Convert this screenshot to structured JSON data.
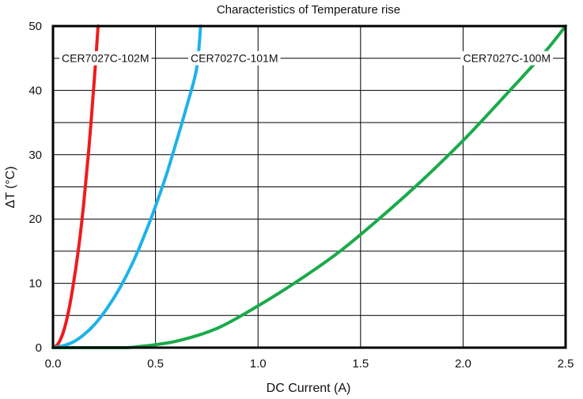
{
  "chart_data": {
    "type": "line",
    "title": "Characteristics of Temperature rise",
    "xlabel": "DC Current (A)",
    "ylabel": "ΔT (°C)",
    "xlim": [
      0,
      2.5
    ],
    "ylim": [
      0,
      50
    ],
    "x_ticks": [
      0.0,
      0.5,
      1.0,
      1.5,
      2.0,
      2.5
    ],
    "x_tick_labels": [
      "0.0",
      "0.5",
      "1.0",
      "1.5",
      "2.0",
      "2.5"
    ],
    "y_ticks": [
      0,
      10,
      20,
      30,
      40,
      50
    ],
    "y_tick_labels": [
      "0",
      "10",
      "20",
      "30",
      "40",
      "50"
    ],
    "y_minor_gridlines": [
      5,
      15,
      25,
      35,
      45
    ],
    "grid": true,
    "series": [
      {
        "name": "CER7027C-102M",
        "color": "#ee1c1c",
        "x": [
          0,
          0.025,
          0.05,
          0.075,
          0.1,
          0.125,
          0.15,
          0.175,
          0.2,
          0.22
        ],
        "y": [
          0,
          0.6,
          2.4,
          5.5,
          10,
          15.5,
          22.5,
          31,
          41,
          50
        ]
      },
      {
        "name": "CER7027C-101M",
        "color": "#1eb2ea",
        "x": [
          0,
          0.05,
          0.1,
          0.15,
          0.2,
          0.25,
          0.3,
          0.35,
          0.4,
          0.45,
          0.5,
          0.55,
          0.6,
          0.65,
          0.7,
          0.72
        ],
        "y": [
          0,
          0.3,
          0.9,
          2.0,
          3.5,
          5.5,
          7.9,
          10.7,
          14.0,
          17.8,
          22.0,
          26.6,
          31.8,
          37.3,
          43.3,
          50
        ]
      },
      {
        "name": "CER7027C-100M",
        "color": "#1aaa4a",
        "x": [
          0,
          0.3,
          0.4,
          0.6,
          0.8,
          1.0,
          1.2,
          1.4,
          1.6,
          1.8,
          2.0,
          2.2,
          2.4,
          2.5
        ],
        "y": [
          0,
          0,
          0.1,
          1.0,
          3.0,
          6.5,
          10.5,
          15.0,
          20.3,
          26.0,
          32.2,
          39.0,
          46.0,
          50
        ]
      }
    ]
  }
}
